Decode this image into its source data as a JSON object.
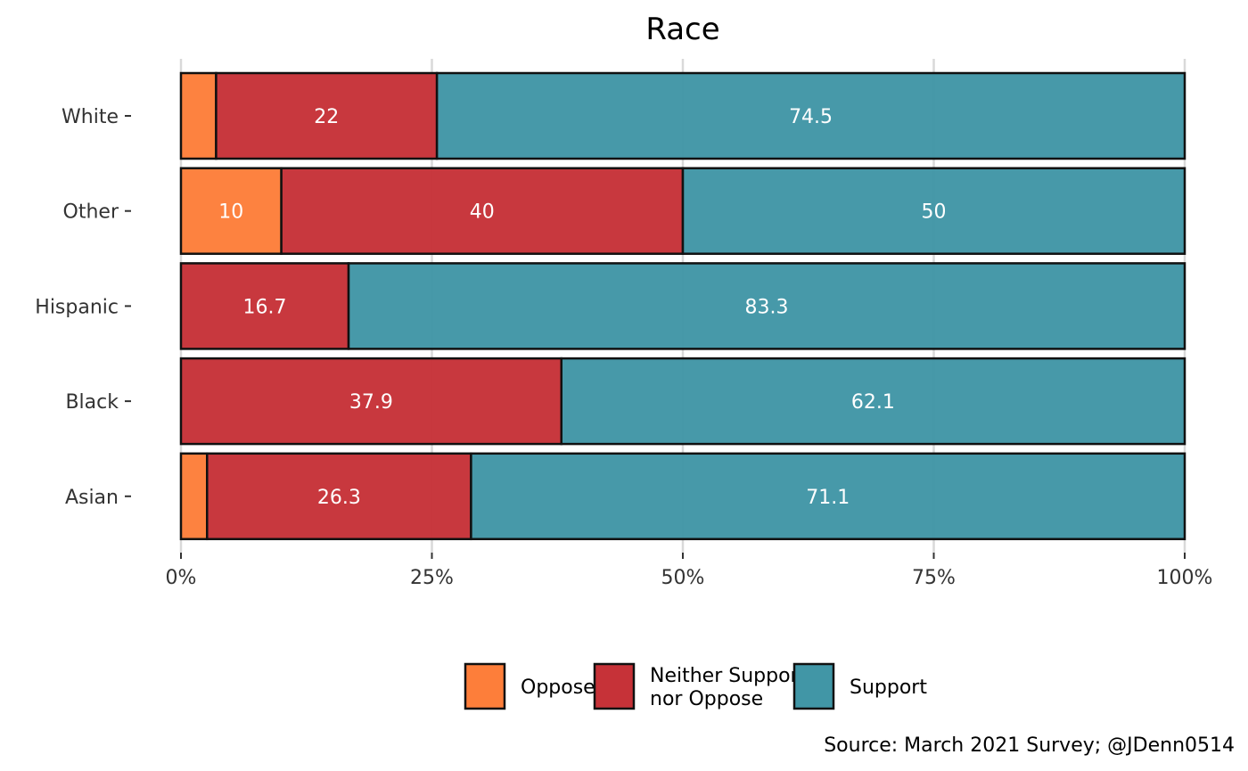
{
  "chart_data": {
    "type": "bar",
    "orientation": "horizontal",
    "stacked": "percent",
    "title": "Race",
    "categories": [
      "White",
      "Other",
      "Hispanic",
      "Black",
      "Asian"
    ],
    "series": [
      {
        "name": "Oppose",
        "color": "#FD7E3A",
        "values": [
          3.5,
          10,
          0,
          0,
          2.6
        ]
      },
      {
        "name": "Neither Support nor Oppose",
        "color": "#C63238",
        "values": [
          22,
          40,
          16.7,
          37.9,
          26.3
        ]
      },
      {
        "name": "Support",
        "color": "#4196A6",
        "values": [
          74.5,
          50,
          83.3,
          62.1,
          71.1
        ]
      }
    ],
    "data_labels": [
      [
        "",
        "22",
        "74.5"
      ],
      [
        "10",
        "40",
        "50"
      ],
      [
        "",
        "16.7",
        "83.3"
      ],
      [
        "",
        "37.9",
        "62.1"
      ],
      [
        "",
        "26.3",
        "71.1"
      ]
    ],
    "x_ticks": [
      "0%",
      "25%",
      "50%",
      "75%",
      "100%"
    ],
    "xlim": [
      0,
      100
    ],
    "grid": true,
    "legend": {
      "position": "bottom",
      "entries": [
        {
          "lines": [
            "Oppose"
          ],
          "color": "#FD7E3A"
        },
        {
          "lines": [
            "Neither Support",
            "nor Oppose"
          ],
          "color": "#C63238"
        },
        {
          "lines": [
            "Support"
          ],
          "color": "#4196A6"
        }
      ]
    },
    "caption": "Source: March 2021 Survey; @JDenn0514"
  }
}
